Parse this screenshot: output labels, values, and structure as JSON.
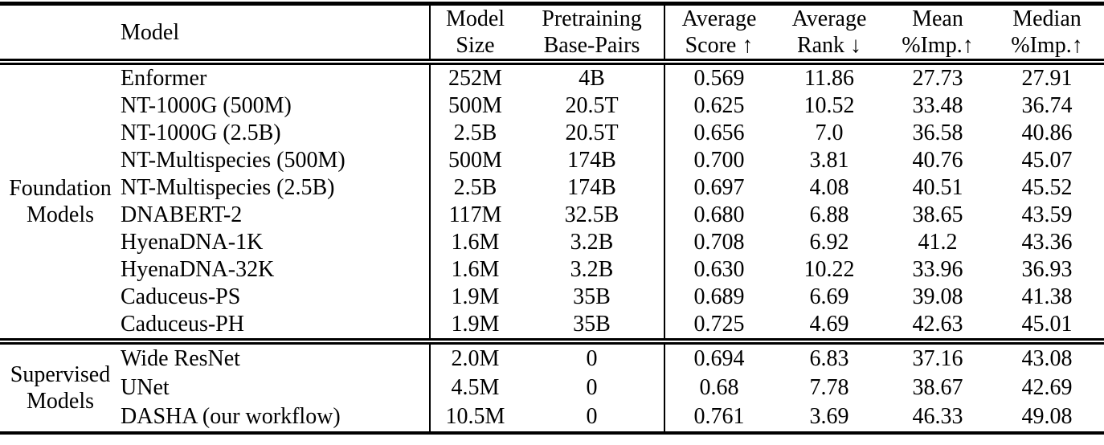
{
  "table": {
    "columns": [
      {
        "id": "model",
        "lines": [
          "Model"
        ]
      },
      {
        "id": "size",
        "lines": [
          "Model",
          "Size"
        ]
      },
      {
        "id": "pretraining",
        "lines": [
          "Pretraining",
          "Base-Pairs"
        ]
      },
      {
        "id": "score",
        "lines": [
          "Average",
          "Score ↑"
        ]
      },
      {
        "id": "rank",
        "lines": [
          "Average",
          "Rank ↓"
        ]
      },
      {
        "id": "mean_imp",
        "lines": [
          "Mean",
          "%Imp.↑"
        ]
      },
      {
        "id": "median_imp",
        "lines": [
          "Median",
          "%Imp.↑"
        ]
      }
    ],
    "sections": [
      {
        "label_lines": [
          "Foundation",
          "Models"
        ],
        "rows": [
          {
            "model": "Enformer",
            "size": "252M",
            "pretraining": "4B",
            "score": "0.569",
            "rank": "11.86",
            "mean_imp": "27.73",
            "median_imp": "27.91",
            "bold_model": false,
            "bold_metrics": false
          },
          {
            "model": "NT-1000G (500M)",
            "size": "500M",
            "pretraining": "20.5T",
            "score": "0.625",
            "rank": "10.52",
            "mean_imp": "33.48",
            "median_imp": "36.74",
            "bold_model": false,
            "bold_metrics": false
          },
          {
            "model": "NT-1000G (2.5B)",
            "size": "2.5B",
            "pretraining": "20.5T",
            "score": "0.656",
            "rank": "7.0",
            "mean_imp": "36.58",
            "median_imp": "40.86",
            "bold_model": false,
            "bold_metrics": false
          },
          {
            "model": "NT-Multispecies (500M)",
            "size": "500M",
            "pretraining": "174B",
            "score": "0.700",
            "rank": "3.81",
            "mean_imp": "40.76",
            "median_imp": "45.07",
            "bold_model": false,
            "bold_metrics": false
          },
          {
            "model": "NT-Multispecies (2.5B)",
            "size": "2.5B",
            "pretraining": "174B",
            "score": "0.697",
            "rank": "4.08",
            "mean_imp": "40.51",
            "median_imp": "45.52",
            "bold_model": false,
            "bold_metrics": false
          },
          {
            "model": "DNABERT-2",
            "size": "117M",
            "pretraining": "32.5B",
            "score": "0.680",
            "rank": "6.88",
            "mean_imp": "38.65",
            "median_imp": "43.59",
            "bold_model": false,
            "bold_metrics": false
          },
          {
            "model": "HyenaDNA-1K",
            "size": "1.6M",
            "pretraining": "3.2B",
            "score": "0.708",
            "rank": "6.92",
            "mean_imp": "41.2",
            "median_imp": "43.36",
            "bold_model": false,
            "bold_metrics": false
          },
          {
            "model": "HyenaDNA-32K",
            "size": "1.6M",
            "pretraining": "3.2B",
            "score": "0.630",
            "rank": "10.22",
            "mean_imp": "33.96",
            "median_imp": "36.93",
            "bold_model": false,
            "bold_metrics": false
          },
          {
            "model": "Caduceus-PS",
            "size": "1.9M",
            "pretraining": "35B",
            "score": "0.689",
            "rank": "6.69",
            "mean_imp": "39.08",
            "median_imp": "41.38",
            "bold_model": false,
            "bold_metrics": false
          },
          {
            "model": "Caduceus-PH",
            "size": "1.9M",
            "pretraining": "35B",
            "score": "0.725",
            "rank": "4.69",
            "mean_imp": "42.63",
            "median_imp": "45.01",
            "bold_model": false,
            "bold_metrics": false
          }
        ]
      },
      {
        "label_lines": [
          "Supervised",
          "Models"
        ],
        "rows": [
          {
            "model": "Wide ResNet",
            "size": "2.0M",
            "pretraining": "0",
            "score": "0.694",
            "rank": "6.83",
            "mean_imp": "37.16",
            "median_imp": "43.08",
            "bold_model": false,
            "bold_metrics": false
          },
          {
            "model": "UNet",
            "size": "4.5M",
            "pretraining": "0",
            "score": "0.68",
            "rank": "7.78",
            "mean_imp": "38.67",
            "median_imp": "42.69",
            "bold_model": false,
            "bold_metrics": false
          },
          {
            "model": "DASHA (our workflow)",
            "size": "10.5M",
            "pretraining": "0",
            "score": "0.761",
            "rank": "3.69",
            "mean_imp": "46.33",
            "median_imp": "49.08",
            "bold_model": true,
            "bold_metrics": true
          }
        ]
      }
    ]
  },
  "colors": {
    "text": "#000000",
    "background": "#ffffff",
    "rule": "#000000"
  }
}
